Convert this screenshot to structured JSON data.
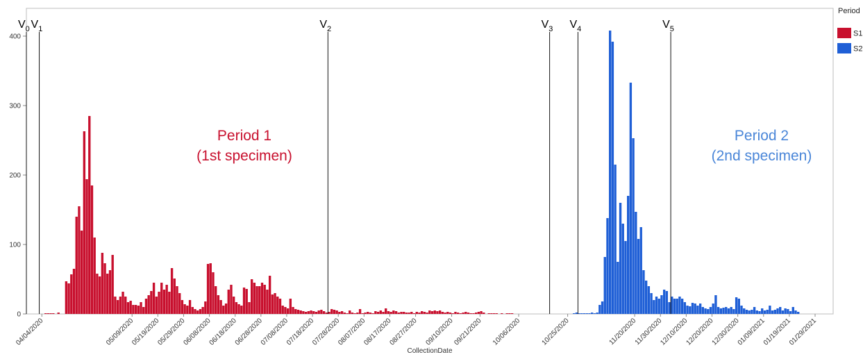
{
  "chart_data": {
    "type": "bar",
    "xlabel": "CollectionDate",
    "ylabel": "",
    "ylim": [
      0,
      440
    ],
    "yticks": [
      0,
      100,
      200,
      300,
      400
    ],
    "xlim": [
      "2020-03-29",
      "2021-02-05"
    ],
    "xticks": [
      "04/04/2020",
      "05/09/2020",
      "05/19/2020",
      "05/29/2020",
      "06/08/2020",
      "06/18/2020",
      "06/28/2020",
      "07/08/2020",
      "07/18/2020",
      "07/28/2020",
      "08/07/2020",
      "08/17/2020",
      "08/27/2020",
      "09/10/2020",
      "09/21/2020",
      "10/06/2020",
      "10/25/2020",
      "11/20/2020",
      "11/30/2020",
      "12/10/2020",
      "12/20/2020",
      "12/30/2020",
      "01/09/2021",
      "01/19/2021",
      "01/29/2021"
    ],
    "grid": false,
    "legend_position": "top-right",
    "legend": {
      "title": "Period",
      "items": [
        {
          "label": "S1",
          "color": "#c8102e"
        },
        {
          "label": "S2",
          "color": "#1f5fd6"
        }
      ]
    },
    "series": [
      {
        "name": "S1",
        "color": "#c8102e",
        "start": "2020-04-04",
        "values": [
          0,
          1,
          1,
          1,
          1,
          0,
          2,
          0,
          0,
          47,
          44,
          57,
          65,
          140,
          155,
          120,
          263,
          194,
          285,
          185,
          110,
          58,
          54,
          88,
          73,
          58,
          63,
          85,
          25,
          20,
          25,
          32,
          25,
          17,
          19,
          13,
          13,
          12,
          17,
          10,
          22,
          27,
          33,
          45,
          25,
          32,
          45,
          35,
          42,
          32,
          66,
          51,
          40,
          30,
          20,
          14,
          12,
          20,
          10,
          7,
          5,
          7,
          10,
          18,
          72,
          73,
          60,
          40,
          27,
          20,
          12,
          15,
          35,
          42,
          25,
          17,
          14,
          12,
          38,
          36,
          17,
          50,
          45,
          40,
          40,
          45,
          42,
          35,
          55,
          28,
          30,
          25,
          22,
          12,
          10,
          8,
          22,
          10,
          7,
          6,
          5,
          4,
          3,
          4,
          5,
          4,
          3,
          5,
          6,
          4,
          2,
          3,
          7,
          6,
          5,
          3,
          4,
          2,
          1,
          5,
          2,
          1,
          2,
          7,
          1,
          2,
          3,
          2,
          1,
          4,
          3,
          5,
          3,
          8,
          4,
          3,
          5,
          4,
          2,
          3,
          3,
          2,
          2,
          3,
          1,
          3,
          2,
          4,
          3,
          2,
          5,
          4,
          5,
          4,
          5,
          3,
          2,
          3,
          2,
          1,
          3,
          2,
          1,
          2,
          3,
          2,
          1,
          1,
          2,
          3,
          4,
          2,
          0,
          1,
          1,
          1,
          1,
          0,
          1,
          0,
          1,
          1,
          1
        ]
      },
      {
        "name": "S2",
        "color": "#1f5fd6",
        "start": "2020-10-24",
        "values": [
          0,
          0,
          0,
          1,
          2,
          1,
          1,
          1,
          1,
          1,
          2,
          1,
          2,
          13,
          18,
          82,
          138,
          408,
          392,
          215,
          75,
          160,
          130,
          105,
          170,
          333,
          253,
          147,
          108,
          125,
          63,
          48,
          40,
          30,
          20,
          25,
          22,
          27,
          35,
          33,
          17,
          25,
          22,
          22,
          25,
          22,
          17,
          12,
          11,
          16,
          15,
          12,
          15,
          10,
          8,
          7,
          10,
          15,
          27,
          10,
          8,
          9,
          10,
          8,
          10,
          7,
          24,
          22,
          12,
          8,
          6,
          5,
          6,
          10,
          5,
          4,
          8,
          5,
          6,
          12,
          5,
          6,
          8,
          10,
          5,
          8,
          7,
          4,
          10,
          5,
          3
        ]
      }
    ],
    "vlines": [
      {
        "label": "V",
        "sub": "0",
        "date": "2020-03-29"
      },
      {
        "label": "V",
        "sub": "1",
        "date": "2020-04-03"
      },
      {
        "label": "V",
        "sub": "2",
        "date": "2020-07-24"
      },
      {
        "label": "V",
        "sub": "3",
        "date": "2020-10-18"
      },
      {
        "label": "V",
        "sub": "4",
        "date": "2020-10-29"
      },
      {
        "label": "V",
        "sub": "5",
        "date": "2020-12-04"
      }
    ],
    "annotations": [
      {
        "lines": [
          "Period 1",
          "(1st specimen)"
        ],
        "color": "#c8102e"
      },
      {
        "lines": [
          "Period 2",
          "(2nd specimen)"
        ],
        "color": "#4a86d8"
      }
    ]
  }
}
